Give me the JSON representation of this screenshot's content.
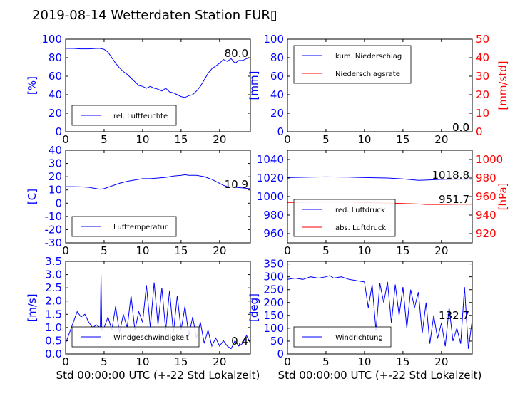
{
  "title": "2019-08-14 Wetterdaten Station FUR▯",
  "colors": {
    "blue": "#0000ff",
    "red": "#ff0000",
    "black": "#000000"
  },
  "chart_data": [
    {
      "id": "humidity",
      "type": "line",
      "ylabel": "[%]",
      "ylim": [
        0,
        100
      ],
      "yticks": [
        0,
        20,
        40,
        60,
        80,
        100
      ],
      "xlim": [
        0,
        24
      ],
      "xticks": [
        0,
        5,
        10,
        15,
        20
      ],
      "legend": [
        "rel. Luftfeuchte"
      ],
      "legend_position": "lower-left",
      "last_value_label": "80.0",
      "series": [
        {
          "name": "rel. Luftfeuchte",
          "color": "#0000ff",
          "x": [
            0,
            1,
            2,
            3,
            4,
            4.5,
            5,
            5.5,
            6,
            6.5,
            7,
            7.5,
            8,
            8.5,
            9,
            9.5,
            10,
            10.5,
            11,
            11.5,
            12,
            12.5,
            13,
            13.5,
            14,
            14.5,
            15,
            15.5,
            16,
            16.5,
            17,
            17.5,
            18,
            18.5,
            19,
            19.5,
            20,
            20.5,
            21,
            21.5,
            22,
            22.5,
            23,
            23.5,
            24
          ],
          "y": [
            90,
            90,
            89.5,
            89.5,
            90,
            90,
            89,
            86,
            80,
            74,
            69,
            65,
            62,
            58,
            54,
            50,
            49,
            47,
            49,
            47,
            46,
            44,
            47,
            43,
            42,
            40,
            38,
            37,
            39,
            40,
            44,
            49,
            56,
            63,
            68,
            71,
            74,
            78,
            76,
            79,
            74,
            77,
            77,
            79,
            80
          ]
        }
      ]
    },
    {
      "id": "precipitation",
      "type": "line",
      "ylabel": "[mm]",
      "ylim": [
        0,
        100
      ],
      "yticks": [
        0,
        20,
        40,
        60,
        80,
        100
      ],
      "y2label": "[mm/std]",
      "y2lim": [
        0,
        50
      ],
      "y2ticks": [
        0,
        10,
        20,
        30,
        40,
        50
      ],
      "xlim": [
        0,
        24
      ],
      "xticks": [
        0,
        5,
        10,
        15,
        20
      ],
      "legend": [
        "kum. Niederschlag",
        "Niederschlagsrate"
      ],
      "legend_position": "upper-left",
      "last_value_labels": [
        "0.0",
        "0.0"
      ],
      "series": [
        {
          "name": "kum. Niederschlag",
          "color": "#0000ff",
          "axis": "left",
          "x": [
            0,
            24
          ],
          "y": [
            0,
            0
          ]
        },
        {
          "name": "Niederschlagsrate",
          "color": "#ff0000",
          "axis": "right",
          "x": [
            0,
            24
          ],
          "y": [
            0,
            0
          ]
        }
      ]
    },
    {
      "id": "temperature",
      "type": "line",
      "ylabel": "[C]",
      "ylim": [
        -30,
        40
      ],
      "yticks": [
        -30,
        -20,
        -10,
        0,
        10,
        20,
        30,
        40
      ],
      "xlim": [
        0,
        24
      ],
      "xticks": [
        0,
        5,
        10,
        15,
        20
      ],
      "legend": [
        "Lufttemperatur"
      ],
      "legend_position": "lower-left",
      "last_value_label": "10.9",
      "series": [
        {
          "name": "Lufttemperatur",
          "color": "#0000ff",
          "x": [
            0,
            1,
            2,
            3,
            4,
            4.5,
            5,
            6,
            7,
            8,
            9,
            10,
            11,
            12,
            13,
            14,
            15,
            15.5,
            16,
            17,
            18,
            19,
            20,
            20.5,
            21,
            22,
            23,
            24
          ],
          "y": [
            12.5,
            12.5,
            12.3,
            12,
            11,
            10.5,
            11,
            13,
            15,
            16.5,
            17.5,
            18.5,
            18.5,
            19,
            19.5,
            20.5,
            21,
            21.5,
            21,
            21,
            20,
            18,
            15,
            13.5,
            12.5,
            12,
            11.5,
            10.9
          ]
        }
      ]
    },
    {
      "id": "pressure",
      "type": "line",
      "ylim": [
        950,
        1050
      ],
      "yticks": [
        960,
        980,
        1000,
        1020,
        1040
      ],
      "y2label": "[hPa]",
      "y2lim": [
        910,
        1010
      ],
      "y2ticks": [
        920,
        940,
        960,
        980,
        1000
      ],
      "xlim": [
        0,
        24
      ],
      "xticks": [
        0,
        5,
        10,
        15,
        20
      ],
      "legend": [
        "red. Luftdruck",
        "abs. Luftdruck"
      ],
      "legend_position": "lower-left",
      "last_value_labels": [
        "1018.8",
        "951.7"
      ],
      "series": [
        {
          "name": "red. Luftdruck",
          "color": "#0000ff",
          "axis": "left",
          "x": [
            0,
            3,
            5,
            8,
            10,
            13,
            15,
            17,
            18,
            20,
            22,
            24
          ],
          "y": [
            1020.5,
            1021,
            1021.2,
            1021,
            1020.5,
            1020,
            1019,
            1017.5,
            1017.8,
            1018.5,
            1018.8,
            1018.8
          ]
        },
        {
          "name": "abs. Luftdruck",
          "color": "#ff0000",
          "axis": "right",
          "x": [
            0,
            3,
            5,
            8,
            10,
            13,
            15,
            17,
            18,
            20,
            22,
            24
          ],
          "y": [
            953.5,
            954,
            954,
            954,
            953.5,
            953,
            952.5,
            952,
            951.5,
            951.5,
            951.7,
            951.7
          ]
        }
      ]
    },
    {
      "id": "windspeed",
      "type": "line",
      "ylabel": "[m/s]",
      "ylim": [
        0,
        3.5
      ],
      "yticks": [
        0.0,
        0.5,
        1.0,
        1.5,
        2.0,
        2.5,
        3.0,
        3.5
      ],
      "xlim": [
        0,
        24
      ],
      "xticks": [
        0,
        5,
        10,
        15,
        20
      ],
      "xlabel": "Std 00:00:00 UTC (+-22 Std Lokalzeit)",
      "legend": [
        "Windgeschwindigkeit"
      ],
      "legend_position": "lower-left",
      "last_value_label": "0.4",
      "series": [
        {
          "name": "Windgeschwindigkeit",
          "color": "#0000ff",
          "x": [
            0,
            0.5,
            1,
            1.5,
            2,
            2.5,
            3,
            3.5,
            4,
            4.5,
            4.6,
            4.7,
            5,
            5.5,
            6,
            6.5,
            7,
            7.5,
            8,
            8.5,
            9,
            9.5,
            10,
            10.5,
            11,
            11.5,
            12,
            12.5,
            13,
            13.5,
            14,
            14.5,
            15,
            15.5,
            16,
            16.5,
            17,
            17.5,
            18,
            18.5,
            19,
            19.5,
            20,
            20.5,
            21,
            21.5,
            22,
            22.5,
            23,
            23.5,
            24
          ],
          "y": [
            0.4,
            0.8,
            1.2,
            1.6,
            1.4,
            1.5,
            1.2,
            1.0,
            1.1,
            1.0,
            3.0,
            0.9,
            1.0,
            1.4,
            0.9,
            1.8,
            0.8,
            1.5,
            1.0,
            2.2,
            0.9,
            1.6,
            1.2,
            2.6,
            1.0,
            2.7,
            1.1,
            2.5,
            0.9,
            2.4,
            0.8,
            2.2,
            0.9,
            1.8,
            0.7,
            1.4,
            0.6,
            1.2,
            0.4,
            0.9,
            0.3,
            0.6,
            0.3,
            0.5,
            0.3,
            0.2,
            0.5,
            0.3,
            0.4,
            0.7,
            0.4
          ]
        }
      ]
    },
    {
      "id": "winddirection",
      "type": "line",
      "ylabel": "[deg]",
      "ylim": [
        0,
        360
      ],
      "yticks": [
        0,
        50,
        100,
        150,
        200,
        250,
        300,
        350
      ],
      "xlim": [
        0,
        24
      ],
      "xticks": [
        0,
        5,
        10,
        15,
        20
      ],
      "xlabel": "Std 00:00:00 UTC (+-22 Std Lokalzeit)",
      "legend": [
        "Windrichtung"
      ],
      "legend_position": "lower-left",
      "last_value_label": "132.7",
      "series": [
        {
          "name": "Windrichtung",
          "color": "#0000ff",
          "x": [
            0,
            1,
            2,
            3,
            4,
            5,
            5.5,
            6,
            7,
            8,
            9,
            10,
            10.5,
            11,
            11.5,
            12,
            12.5,
            13,
            13.5,
            14,
            14.5,
            15,
            15.5,
            16,
            16.5,
            17,
            17.5,
            18,
            18.5,
            19,
            19.5,
            20,
            20.5,
            21,
            21.5,
            22,
            22.5,
            23,
            23.5,
            24
          ],
          "y": [
            290,
            295,
            290,
            300,
            295,
            300,
            305,
            295,
            300,
            290,
            285,
            280,
            180,
            270,
            90,
            275,
            200,
            280,
            120,
            270,
            150,
            260,
            100,
            250,
            180,
            240,
            80,
            200,
            40,
            150,
            60,
            120,
            30,
            180,
            50,
            100,
            40,
            260,
            20,
            133
          ]
        }
      ]
    }
  ]
}
